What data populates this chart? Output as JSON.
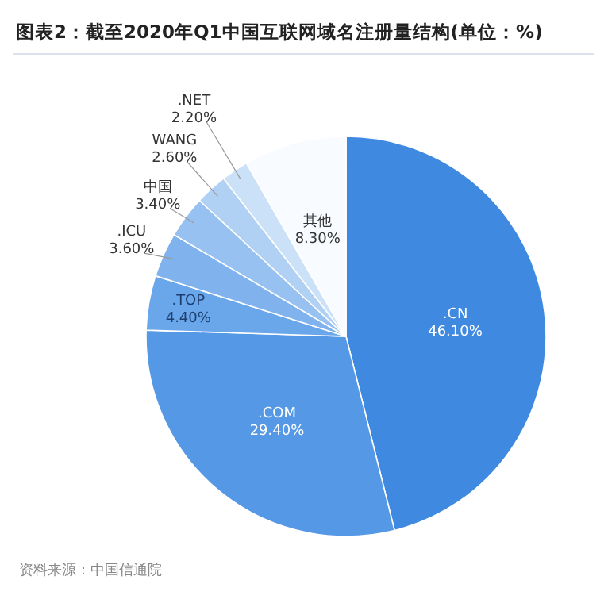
{
  "chart_data": {
    "type": "pie",
    "title": "图表2：截至2020年Q1中国互联网域名注册量结构(单位：%)",
    "categories": [
      ".CN",
      ".COM",
      ".TOP",
      ".ICU",
      "中国",
      "WANG",
      ".NET",
      "其他"
    ],
    "values": [
      46.1,
      29.4,
      4.4,
      3.6,
      3.4,
      2.6,
      2.2,
      8.3
    ],
    "value_labels": [
      "46.10%",
      "29.40%",
      "4.40%",
      "3.60%",
      "3.40%",
      "2.60%",
      "2.20%",
      "8.30%"
    ],
    "colors": [
      "#3f8ae0",
      "#5598e5",
      "#6aa6ea",
      "#80b3ed",
      "#97c1f0",
      "#b0d1f4",
      "#cbe1f8",
      "#f8fbff"
    ],
    "annotations": [
      "资料来源：中国信通院"
    ]
  }
}
